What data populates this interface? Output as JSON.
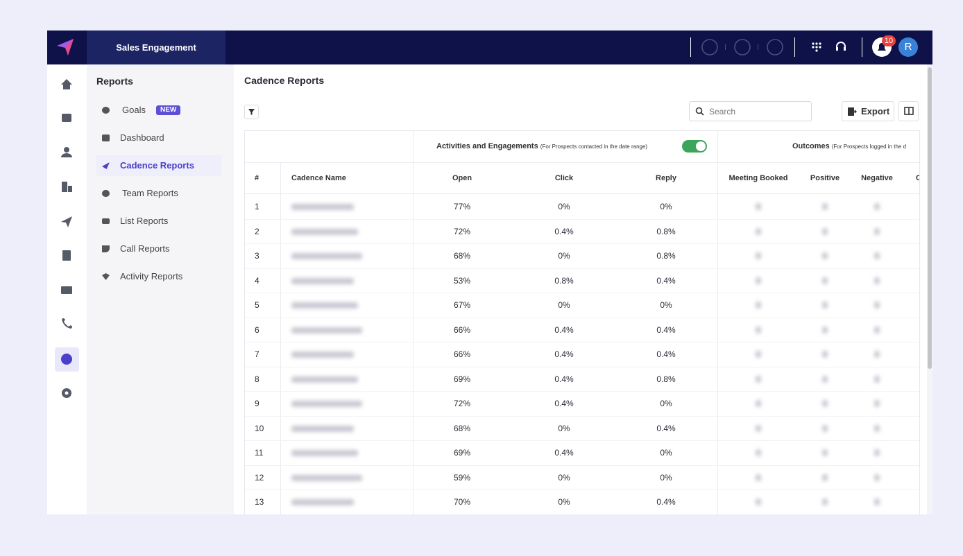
{
  "topbar": {
    "product": "Sales Engagement",
    "notifications": "10",
    "avatar": "R"
  },
  "sidebar": {
    "title": "Reports",
    "items": [
      {
        "label": "Goals",
        "badge": "NEW"
      },
      {
        "label": "Dashboard"
      },
      {
        "label": "Cadence Reports"
      },
      {
        "label": "Team Reports"
      },
      {
        "label": "List Reports"
      },
      {
        "label": "Call Reports"
      },
      {
        "label": "Activity Reports"
      }
    ]
  },
  "main": {
    "title": "Cadence Reports",
    "search_placeholder": "Search",
    "export": "Export"
  },
  "table": {
    "groups": [
      {
        "title": "Activities and Engagements",
        "note": "(For Prospects contacted in the date range)"
      },
      {
        "title": "Outcomes",
        "note": "(For Prospects logged in the d"
      }
    ],
    "columns": [
      "#",
      "Cadence Name",
      "Open",
      "Click",
      "Reply",
      "Meeting Booked",
      "Positive",
      "Negative",
      "C"
    ],
    "rows": [
      [
        1,
        "77%",
        "0%",
        "0%"
      ],
      [
        2,
        "72%",
        "0.4%",
        "0.8%"
      ],
      [
        3,
        "68%",
        "0%",
        "0.8%"
      ],
      [
        4,
        "53%",
        "0.8%",
        "0.4%"
      ],
      [
        5,
        "67%",
        "0%",
        "0%"
      ],
      [
        6,
        "66%",
        "0.4%",
        "0.4%"
      ],
      [
        7,
        "66%",
        "0.4%",
        "0.4%"
      ],
      [
        8,
        "69%",
        "0.4%",
        "0.8%"
      ],
      [
        9,
        "72%",
        "0.4%",
        "0%"
      ],
      [
        10,
        "68%",
        "0%",
        "0.4%"
      ],
      [
        11,
        "69%",
        "0.4%",
        "0%"
      ],
      [
        12,
        "59%",
        "0%",
        "0%"
      ],
      [
        13,
        "70%",
        "0%",
        "0.4%"
      ]
    ]
  }
}
